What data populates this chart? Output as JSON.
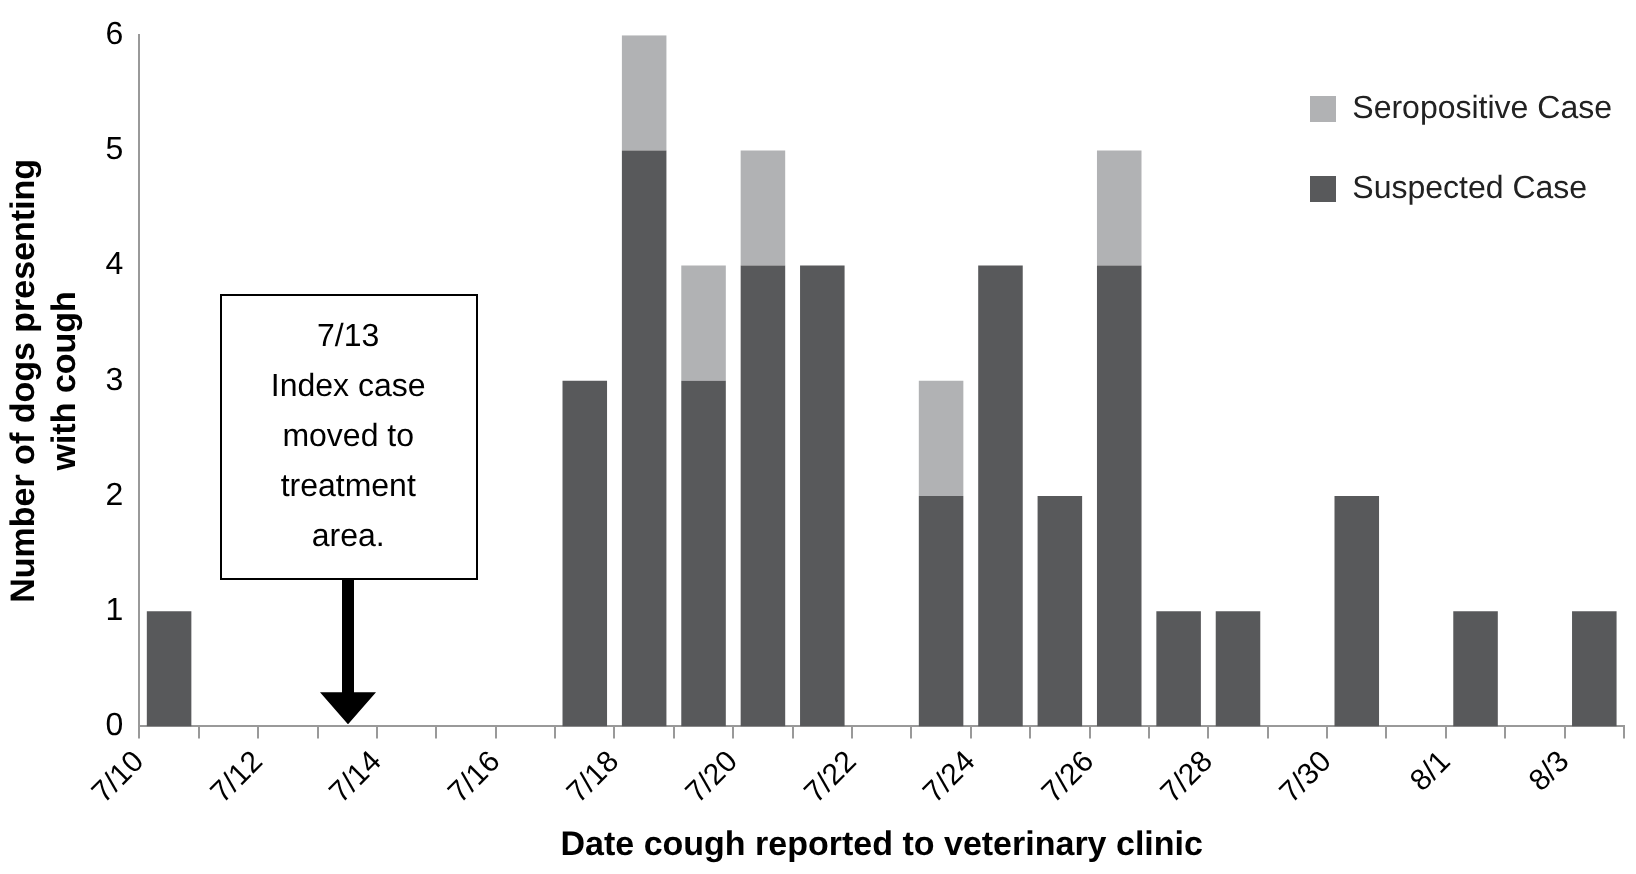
{
  "chart_data": {
    "type": "bar",
    "stacked": true,
    "xlabel": "Date cough reported to veterinary clinic",
    "ylabel": "Number of dogs presenting\nwith cough",
    "categories": [
      "7/10",
      null,
      "7/12",
      null,
      "7/14",
      null,
      "7/16",
      null,
      "7/18",
      null,
      "7/20",
      null,
      "7/22",
      null,
      "7/24",
      null,
      "7/26",
      null,
      "7/28",
      null,
      "7/30",
      null,
      "8/1",
      null,
      "8/3"
    ],
    "series": [
      {
        "name": "Suspected Case",
        "color": "#58595b",
        "values": [
          1,
          0,
          0,
          0,
          0,
          0,
          0,
          3,
          5,
          3,
          4,
          4,
          0,
          2,
          4,
          2,
          4,
          1,
          1,
          0,
          2,
          0,
          1,
          0,
          1
        ]
      },
      {
        "name": "Seropositive Case",
        "color": "#b1b2b4",
        "values": [
          0,
          0,
          0,
          0,
          0,
          0,
          0,
          0,
          1,
          1,
          1,
          0,
          0,
          1,
          0,
          0,
          1,
          0,
          0,
          0,
          0,
          0,
          0,
          0,
          0
        ]
      }
    ],
    "ylim": [
      0,
      6
    ],
    "yticks": [
      0,
      1,
      2,
      3,
      4,
      5,
      6
    ],
    "grid": false,
    "legend": "top right",
    "annotations": [
      "7/13\nIndex case\nmoved to\ntreatment\narea."
    ]
  }
}
